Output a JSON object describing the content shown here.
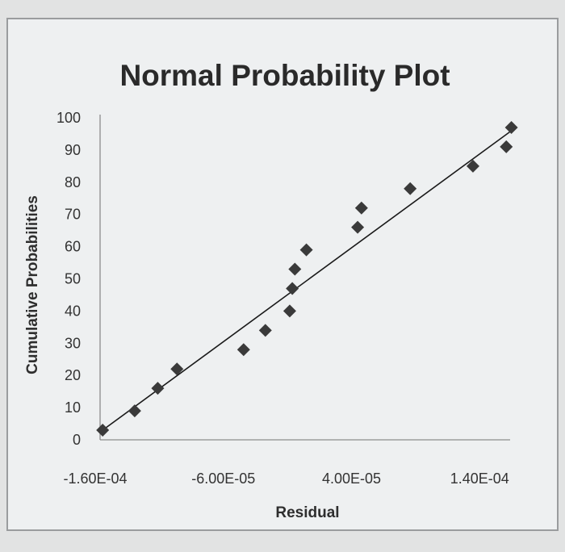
{
  "chart_data": {
    "type": "scatter",
    "title": "Normal Probability Plot",
    "xlabel": "Residual",
    "ylabel": "Cumulative Probabilities",
    "x_ticks": [
      "-1.60E-04",
      "-6.00E-05",
      "4.00E-05",
      "1.40E-04"
    ],
    "y_ticks": [
      "0",
      "10",
      "20",
      "30",
      "40",
      "50",
      "60",
      "70",
      "80",
      "90",
      "100"
    ],
    "xlim": [
      -0.00016,
      0.00016
    ],
    "ylim": [
      0,
      100
    ],
    "grid": false,
    "legend": "none",
    "marker_color": "#3a3a3a",
    "series": [
      {
        "points": [
          [
            -0.000158,
            3
          ],
          [
            -0.000133,
            9
          ],
          [
            -0.000115,
            16
          ],
          [
            -0.0001,
            22
          ],
          [
            -4.8e-05,
            28
          ],
          [
            -3.1e-05,
            34
          ],
          [
            -1.2e-05,
            40
          ],
          [
            -1e-05,
            47
          ],
          [
            -8e-06,
            53
          ],
          [
            1e-06,
            59
          ],
          [
            4.1e-05,
            66
          ],
          [
            4.4e-05,
            72
          ],
          [
            8.2e-05,
            78
          ],
          [
            0.000131,
            85
          ],
          [
            0.000157,
            91
          ],
          [
            0.000161,
            97
          ]
        ]
      }
    ],
    "trendline": [
      [
        -0.000158,
        3
      ],
      [
        0.000161,
        96
      ]
    ]
  }
}
